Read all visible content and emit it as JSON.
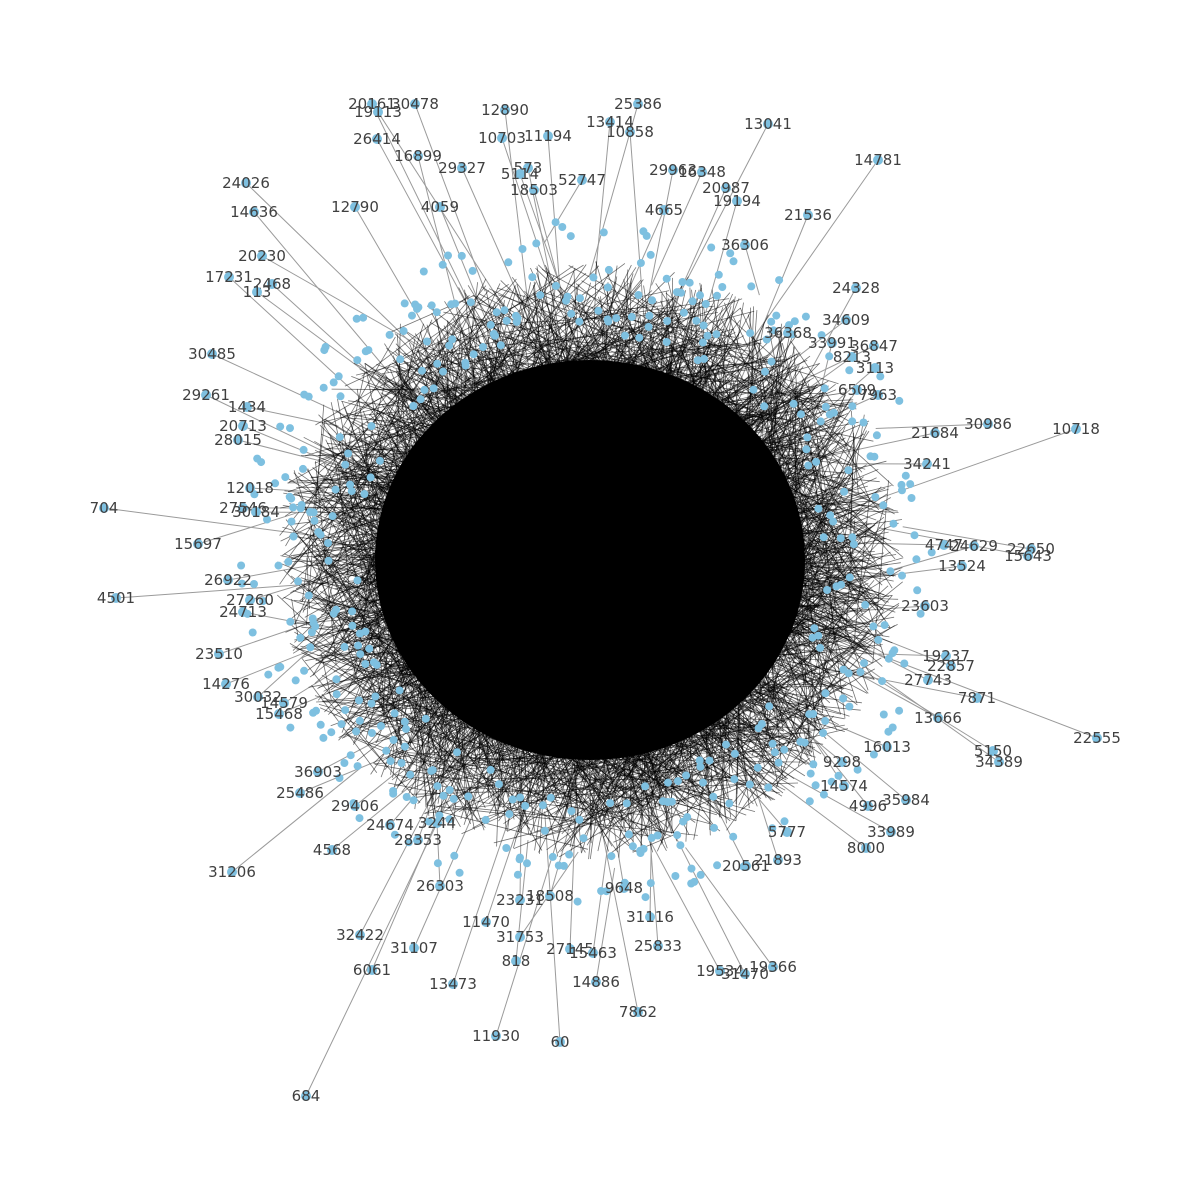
{
  "graph": {
    "type": "network",
    "node_color": "#7ec0e0",
    "edge_color": "#9a9a9a",
    "label_color": "#404040",
    "dense_core_color": "#000000",
    "labeled_nodes": [
      "30478",
      "20161",
      "19113",
      "12890",
      "25386",
      "13414",
      "13041",
      "10703",
      "11194",
      "10858",
      "26414",
      "16899",
      "14781",
      "29327",
      "29963",
      "16348",
      "24026",
      "573",
      "5114",
      "52747",
      "19194",
      "20987",
      "12790",
      "4059",
      "21536",
      "14636",
      "4665",
      "36306",
      "20230",
      "17231",
      "2468",
      "113",
      "24328",
      "34609",
      "36368",
      "33991",
      "36847",
      "30485",
      "8213",
      "3113",
      "29261",
      "1434",
      "7963",
      "6509",
      "20713",
      "28015",
      "30986",
      "10718",
      "21684",
      "34241",
      "12018",
      "704",
      "27546",
      "30184",
      "15697",
      "4747",
      "24629",
      "22650",
      "15643",
      "13524",
      "26922",
      "4501",
      "27260",
      "24713",
      "23603",
      "19237",
      "22857",
      "23510",
      "27743",
      "7871",
      "14276",
      "30032",
      "14579",
      "15468",
      "22555",
      "13666",
      "5150",
      "34389",
      "16013",
      "36903",
      "25486",
      "9298",
      "29406",
      "14574",
      "35984",
      "24674",
      "4996",
      "33989",
      "8000",
      "28353",
      "4568",
      "31206",
      "5777",
      "20561",
      "21893",
      "26303",
      "18508",
      "9648",
      "31116",
      "11470",
      "32422",
      "31107",
      "31753",
      "818",
      "27145",
      "15463",
      "25833",
      "19366",
      "19534",
      "31470",
      "6061",
      "13473",
      "14886",
      "7862",
      "11930",
      "60",
      "684",
      "18503",
      "23231",
      "3244"
    ]
  }
}
